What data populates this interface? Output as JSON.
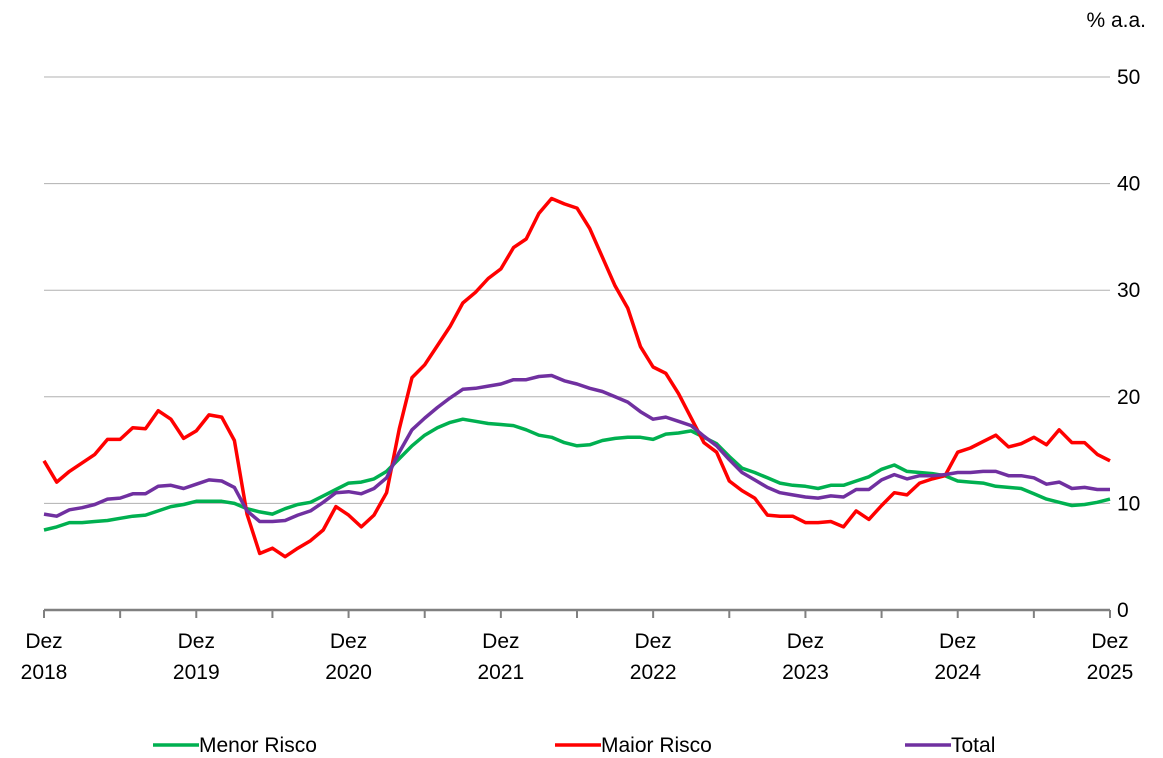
{
  "chart_data": {
    "type": "line",
    "y_label": "% a.a.",
    "categories": [
      "Dez 2018",
      null,
      null,
      null,
      null,
      null,
      null,
      null,
      null,
      null,
      null,
      null,
      "Dez 2019",
      null,
      null,
      null,
      null,
      null,
      null,
      null,
      null,
      null,
      null,
      null,
      "Dez 2020",
      null,
      null,
      null,
      null,
      null,
      null,
      null,
      null,
      null,
      null,
      null,
      "Dez 2021",
      null,
      null,
      null,
      null,
      null,
      null,
      null,
      null,
      null,
      null,
      null,
      "Dez 2022",
      null,
      null,
      null,
      null,
      null,
      null,
      null,
      null,
      null,
      null,
      null,
      "Dez 2023",
      null,
      null,
      null,
      null,
      null,
      null,
      null,
      null,
      null,
      null,
      null,
      "Dez 2024",
      null,
      null,
      null,
      null,
      null,
      null,
      null,
      null,
      null,
      null,
      null,
      "Dez 2025"
    ],
    "series": [
      {
        "name": "Menor Risco",
        "color": "#00b050",
        "values": [
          7.5,
          7.8,
          8.2,
          8.2,
          8.3,
          8.4,
          8.6,
          8.8,
          8.9,
          9.3,
          9.7,
          9.9,
          10.2,
          10.2,
          10.2,
          10,
          9.5,
          9.2,
          9,
          9.5,
          9.9,
          10.1,
          10.7,
          11.3,
          11.9,
          12,
          12.3,
          13,
          14.2,
          15.4,
          16.4,
          17.1,
          17.6,
          17.9,
          17.7,
          17.5,
          17.4,
          17.3,
          16.9,
          16.4,
          16.2,
          15.7,
          15.4,
          15.5,
          15.9,
          16.1,
          16.2,
          16.2,
          16,
          16.5,
          16.6,
          16.8,
          16.2,
          15.6,
          14.4,
          13.3,
          12.9,
          12.4,
          11.9,
          11.7,
          11.6,
          11.4,
          11.7,
          11.7,
          12.1,
          12.5,
          13.2,
          13.6,
          13,
          12.9,
          12.8,
          12.6,
          12.1,
          12,
          11.9,
          11.6,
          11.5,
          11.4,
          10.9,
          10.4,
          10.1,
          9.8,
          9.9,
          10.1,
          10.4
        ]
      },
      {
        "name": "Maior Risco",
        "color": "#ff0000",
        "values": [
          14,
          12,
          13,
          13.8,
          14.6,
          16,
          16,
          17.1,
          17,
          18.7,
          17.9,
          16.1,
          16.8,
          18.3,
          18.1,
          15.9,
          9,
          5.3,
          5.8,
          5,
          5.8,
          6.5,
          7.5,
          9.7,
          8.9,
          7.8,
          8.9,
          11,
          17,
          21.8,
          23,
          24.8,
          26.6,
          28.8,
          29.8,
          31.1,
          32,
          34,
          34.8,
          37.2,
          38.6,
          38.1,
          37.7,
          35.8,
          33.1,
          30.4,
          28.3,
          24.7,
          22.8,
          22.2,
          20.3,
          18,
          15.7,
          14.8,
          12.1,
          11.2,
          10.5,
          8.9,
          8.8,
          8.8,
          8.2,
          8.2,
          8.3,
          7.8,
          9.3,
          8.5,
          9.8,
          11,
          10.8,
          11.9,
          12.3,
          12.6,
          14.8,
          15.2,
          15.8,
          16.4,
          15.3,
          15.6,
          16.2,
          15.5,
          16.9,
          15.7,
          15.7,
          14.6,
          14
        ]
      },
      {
        "name": "Total",
        "color": "#7030a0",
        "values": [
          9,
          8.8,
          9.4,
          9.6,
          9.9,
          10.4,
          10.5,
          10.9,
          10.9,
          11.6,
          11.7,
          11.4,
          11.8,
          12.2,
          12.1,
          11.5,
          9.3,
          8.3,
          8.3,
          8.4,
          8.9,
          9.3,
          10.1,
          11,
          11.1,
          10.9,
          11.4,
          12.4,
          14.8,
          16.9,
          18,
          19,
          19.9,
          20.7,
          20.8,
          21,
          21.2,
          21.6,
          21.6,
          21.9,
          22,
          21.5,
          21.2,
          20.8,
          20.5,
          20,
          19.5,
          18.6,
          17.9,
          18.1,
          17.7,
          17.3,
          16.3,
          15.4,
          14.1,
          12.9,
          12.2,
          11.5,
          11,
          10.8,
          10.6,
          10.5,
          10.7,
          10.6,
          11.3,
          11.3,
          12.2,
          12.7,
          12.3,
          12.6,
          12.6,
          12.7,
          12.9,
          12.9,
          13,
          13,
          12.6,
          12.6,
          12.4,
          11.8,
          12,
          11.4,
          11.5,
          11.3,
          11.3
        ]
      }
    ],
    "ylim": [
      0,
      50
    ],
    "yticks": [
      0,
      10,
      20,
      30,
      40,
      50
    ],
    "grid": true,
    "legend": "bottom"
  }
}
